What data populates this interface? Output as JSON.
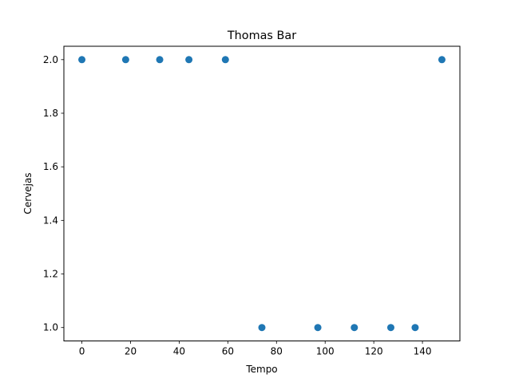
{
  "chart_data": {
    "type": "scatter",
    "title": "Thomas Bar",
    "xlabel": "Tempo",
    "ylabel": "Cervejas",
    "xlim": [
      -7.4,
      155.4
    ],
    "ylim": [
      0.95,
      2.05
    ],
    "xticks": [
      0,
      20,
      40,
      60,
      80,
      100,
      120,
      140
    ],
    "xtick_labels": [
      "0",
      "20",
      "40",
      "60",
      "80",
      "100",
      "120",
      "140"
    ],
    "yticks": [
      1.0,
      1.2,
      1.4,
      1.6,
      1.8,
      2.0
    ],
    "ytick_labels": [
      "1.0",
      "1.2",
      "1.4",
      "1.6",
      "1.8",
      "2.0"
    ],
    "grid": false,
    "marker_color": "#1f77b4",
    "series": [
      {
        "x": [
          0,
          18,
          32,
          44,
          59,
          74,
          97,
          112,
          127,
          137,
          148
        ],
        "y": [
          2,
          2,
          2,
          2,
          2,
          1,
          1,
          1,
          1,
          1,
          2
        ]
      }
    ]
  }
}
